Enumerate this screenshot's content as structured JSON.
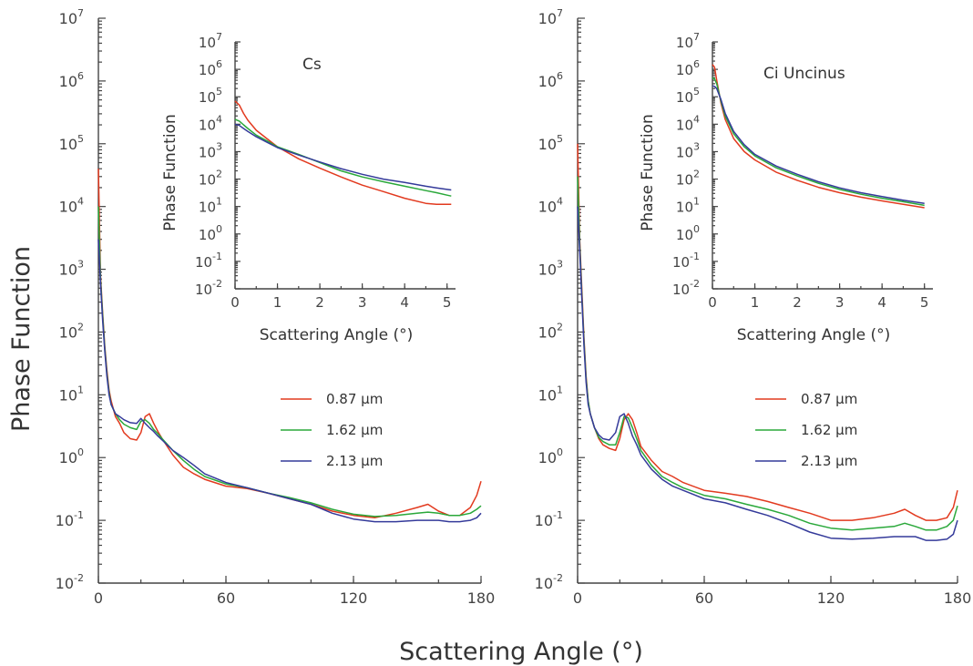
{
  "figure": {
    "ylabel": "Phase Function",
    "xlabel": "Scattering Angle (°)"
  },
  "legend": [
    {
      "label": "0.87 μm",
      "color": "#e23a1f"
    },
    {
      "label": "1.62 μm",
      "color": "#2aa83a"
    },
    {
      "label": "2.13 μm",
      "color": "#343a9a"
    }
  ],
  "chart_data": [
    {
      "type": "line",
      "title": "",
      "xlabel": "",
      "ylabel": "",
      "xlim": [
        0,
        180
      ],
      "ylim_exponent": [
        -2,
        7
      ],
      "y_scale": "log",
      "x_ticks": [
        0,
        60,
        120,
        180
      ],
      "y_tick_exponents": [
        -2,
        -1,
        0,
        1,
        2,
        3,
        4,
        5,
        6,
        7
      ],
      "y_tick_base": "10",
      "legend_labels": [
        "0.87 μm",
        "1.62 μm",
        "2.13 μm"
      ],
      "legend_placement": "center-right",
      "series": [
        {
          "name": "0.87 μm",
          "color": "#e23a1f",
          "x": [
            0,
            1,
            2,
            3,
            4,
            5,
            6,
            8,
            10,
            12,
            15,
            18,
            20,
            22,
            24,
            26,
            28,
            30,
            35,
            40,
            45,
            50,
            60,
            70,
            80,
            90,
            100,
            110,
            120,
            130,
            140,
            150,
            155,
            160,
            165,
            170,
            175,
            178,
            180
          ],
          "y": [
            40000,
            800,
            200,
            60,
            25,
            12,
            8,
            4.5,
            3.5,
            2.5,
            2,
            1.9,
            2.5,
            4.5,
            5,
            3.5,
            2.6,
            2,
            1.1,
            0.7,
            0.55,
            0.45,
            0.35,
            0.32,
            0.27,
            0.22,
            0.18,
            0.14,
            0.12,
            0.11,
            0.13,
            0.16,
            0.18,
            0.14,
            0.12,
            0.12,
            0.16,
            0.25,
            0.42
          ]
        },
        {
          "name": "1.62 μm",
          "color": "#2aa83a",
          "x": [
            0,
            1,
            2,
            3,
            4,
            5,
            6,
            8,
            10,
            12,
            15,
            18,
            20,
            22,
            24,
            26,
            28,
            30,
            35,
            40,
            45,
            50,
            60,
            70,
            80,
            90,
            100,
            110,
            120,
            130,
            140,
            150,
            155,
            160,
            165,
            170,
            175,
            178,
            180
          ],
          "y": [
            10000,
            700,
            180,
            55,
            22,
            11,
            7,
            5,
            4,
            3.4,
            3,
            2.8,
            3.8,
            4,
            3.5,
            2.8,
            2.4,
            2,
            1.3,
            0.9,
            0.65,
            0.5,
            0.38,
            0.33,
            0.27,
            0.23,
            0.19,
            0.15,
            0.125,
            0.115,
            0.12,
            0.13,
            0.135,
            0.13,
            0.12,
            0.12,
            0.13,
            0.15,
            0.17
          ]
        },
        {
          "name": "2.13 μm",
          "color": "#343a9a",
          "x": [
            0,
            1,
            2,
            3,
            4,
            5,
            6,
            8,
            10,
            12,
            15,
            18,
            20,
            22,
            24,
            26,
            28,
            30,
            35,
            40,
            45,
            50,
            60,
            70,
            80,
            90,
            100,
            110,
            120,
            130,
            140,
            150,
            155,
            160,
            165,
            170,
            175,
            178,
            180
          ],
          "y": [
            3000,
            600,
            150,
            50,
            20,
            10,
            7,
            5,
            4.5,
            4,
            3.6,
            3.5,
            4.2,
            3.5,
            3,
            2.6,
            2.2,
            1.9,
            1.3,
            1,
            0.75,
            0.55,
            0.4,
            0.33,
            0.27,
            0.22,
            0.18,
            0.13,
            0.105,
            0.095,
            0.095,
            0.1,
            0.1,
            0.1,
            0.095,
            0.095,
            0.1,
            0.11,
            0.13
          ]
        }
      ]
    },
    {
      "type": "line",
      "title": "Cs",
      "xlabel": "Scattering Angle (°)",
      "ylabel": "Phase Function",
      "xlim": [
        0,
        5.2
      ],
      "ylim_exponent": [
        -2,
        7
      ],
      "y_scale": "log",
      "x_ticks": [
        0,
        1,
        2,
        3,
        4,
        5
      ],
      "y_tick_exponents": [
        -2,
        -1,
        0,
        1,
        2,
        3,
        4,
        5,
        6,
        7
      ],
      "y_tick_base": "10",
      "series": [
        {
          "name": "0.87 μm",
          "color": "#e23a1f",
          "x": [
            0,
            0.1,
            0.2,
            0.3,
            0.5,
            0.75,
            1,
            1.5,
            2,
            2.5,
            3,
            3.5,
            4,
            4.5,
            4.75,
            5,
            5.1
          ],
          "y": [
            70000,
            50000,
            25000,
            14000,
            6000,
            3000,
            1500,
            550,
            250,
            120,
            60,
            35,
            20,
            13,
            12,
            12,
            12
          ]
        },
        {
          "name": "1.62 μm",
          "color": "#2aa83a",
          "x": [
            0,
            0.1,
            0.2,
            0.3,
            0.5,
            0.75,
            1,
            1.5,
            2,
            2.5,
            3,
            3.5,
            4,
            4.5,
            4.75,
            5,
            5.1
          ],
          "y": [
            15000,
            13000,
            9500,
            7000,
            4000,
            2500,
            1500,
            800,
            400,
            200,
            120,
            80,
            55,
            38,
            32,
            26,
            24
          ]
        },
        {
          "name": "2.13 μm",
          "color": "#343a9a",
          "x": [
            0,
            0.1,
            0.2,
            0.3,
            0.5,
            0.75,
            1,
            1.5,
            2,
            2.5,
            3,
            3.5,
            4,
            4.5,
            4.75,
            5,
            5.1
          ],
          "y": [
            10000,
            9000,
            7000,
            5500,
            3500,
            2200,
            1400,
            750,
            420,
            240,
            150,
            100,
            75,
            55,
            48,
            42,
            40
          ]
        }
      ]
    },
    {
      "type": "line",
      "title": "",
      "xlabel": "",
      "ylabel": "",
      "xlim": [
        0,
        180
      ],
      "ylim_exponent": [
        -2,
        7
      ],
      "y_scale": "log",
      "x_ticks": [
        0,
        60,
        120,
        180
      ],
      "y_tick_exponents": [
        -2,
        -1,
        0,
        1,
        2,
        3,
        4,
        5,
        6,
        7
      ],
      "y_tick_base": "10",
      "legend_labels": [
        "0.87 μm",
        "1.62 μm",
        "2.13 μm"
      ],
      "legend_placement": "center-right",
      "series": [
        {
          "name": "0.87 μm",
          "color": "#e23a1f",
          "x": [
            0,
            1,
            2,
            3,
            4,
            5,
            6,
            8,
            10,
            12,
            15,
            18,
            20,
            22,
            24,
            26,
            28,
            30,
            35,
            40,
            45,
            50,
            60,
            70,
            80,
            90,
            100,
            110,
            120,
            130,
            140,
            150,
            155,
            160,
            165,
            170,
            175,
            178,
            180
          ],
          "y": [
            100000,
            3000,
            500,
            80,
            20,
            8,
            5,
            3,
            2,
            1.6,
            1.4,
            1.3,
            2,
            4,
            5,
            4,
            2.5,
            1.5,
            0.9,
            0.6,
            0.5,
            0.4,
            0.3,
            0.27,
            0.24,
            0.2,
            0.16,
            0.13,
            0.1,
            0.1,
            0.11,
            0.13,
            0.15,
            0.12,
            0.1,
            0.1,
            0.11,
            0.16,
            0.3
          ]
        },
        {
          "name": "1.62 μm",
          "color": "#2aa83a",
          "x": [
            0,
            1,
            2,
            3,
            4,
            5,
            6,
            8,
            10,
            12,
            15,
            18,
            20,
            22,
            24,
            26,
            28,
            30,
            35,
            40,
            45,
            50,
            60,
            70,
            80,
            90,
            100,
            110,
            120,
            130,
            140,
            150,
            155,
            160,
            165,
            170,
            175,
            178,
            180
          ],
          "y": [
            30000,
            2500,
            400,
            70,
            18,
            8,
            5,
            3,
            2.1,
            1.8,
            1.6,
            1.6,
            2.5,
            4.5,
            4.3,
            3,
            2,
            1.3,
            0.75,
            0.5,
            0.4,
            0.33,
            0.25,
            0.22,
            0.18,
            0.15,
            0.12,
            0.09,
            0.075,
            0.07,
            0.075,
            0.08,
            0.09,
            0.08,
            0.07,
            0.07,
            0.08,
            0.1,
            0.17
          ]
        },
        {
          "name": "2.13 μm",
          "color": "#343a9a",
          "x": [
            0,
            1,
            2,
            3,
            4,
            5,
            6,
            8,
            10,
            12,
            15,
            18,
            20,
            22,
            24,
            26,
            28,
            30,
            35,
            40,
            45,
            50,
            60,
            70,
            80,
            90,
            100,
            110,
            120,
            130,
            140,
            150,
            155,
            160,
            165,
            170,
            175,
            178,
            180
          ],
          "y": [
            10000,
            2000,
            350,
            60,
            16,
            7,
            5,
            3,
            2.3,
            2,
            1.9,
            2.5,
            4.5,
            5,
            3.5,
            2.2,
            1.6,
            1.1,
            0.65,
            0.45,
            0.35,
            0.3,
            0.22,
            0.19,
            0.15,
            0.12,
            0.09,
            0.065,
            0.052,
            0.05,
            0.052,
            0.055,
            0.055,
            0.055,
            0.048,
            0.048,
            0.05,
            0.06,
            0.1
          ]
        }
      ]
    },
    {
      "type": "line",
      "title": "Ci Uncinus",
      "xlabel": "Scattering Angle (°)",
      "ylabel": "Phase Function",
      "xlim": [
        0,
        5.2
      ],
      "ylim_exponent": [
        -2,
        7
      ],
      "y_scale": "log",
      "x_ticks": [
        0,
        1,
        2,
        3,
        4,
        5
      ],
      "y_tick_exponents": [
        -2,
        -1,
        0,
        1,
        2,
        3,
        4,
        5,
        6,
        7
      ],
      "y_tick_base": "10",
      "series": [
        {
          "name": "0.87 μm",
          "color": "#e23a1f",
          "x": [
            0,
            0.05,
            0.1,
            0.2,
            0.3,
            0.5,
            0.75,
            1,
            1.5,
            2,
            2.5,
            3,
            3.5,
            4,
            4.5,
            5
          ],
          "y": [
            1500000,
            1200000,
            400000,
            60000,
            15000,
            3000,
            1000,
            500,
            180,
            90,
            50,
            32,
            22,
            16,
            12,
            9
          ]
        },
        {
          "name": "1.62 μm",
          "color": "#2aa83a",
          "x": [
            0,
            0.05,
            0.1,
            0.2,
            0.3,
            0.5,
            0.75,
            1,
            1.5,
            2,
            2.5,
            3,
            3.5,
            4,
            4.5,
            5
          ],
          "y": [
            500000,
            450000,
            300000,
            70000,
            20000,
            4500,
            1500,
            700,
            260,
            130,
            70,
            42,
            28,
            20,
            15,
            11
          ]
        },
        {
          "name": "2.13 μm",
          "color": "#343a9a",
          "x": [
            0,
            0.05,
            0.1,
            0.2,
            0.3,
            0.5,
            0.75,
            1,
            1.5,
            2,
            2.5,
            3,
            3.5,
            4,
            4.5,
            5
          ],
          "y": [
            250000,
            240000,
            200000,
            80000,
            25000,
            5500,
            1800,
            800,
            300,
            150,
            80,
            48,
            32,
            23,
            17,
            13
          ]
        }
      ]
    }
  ]
}
